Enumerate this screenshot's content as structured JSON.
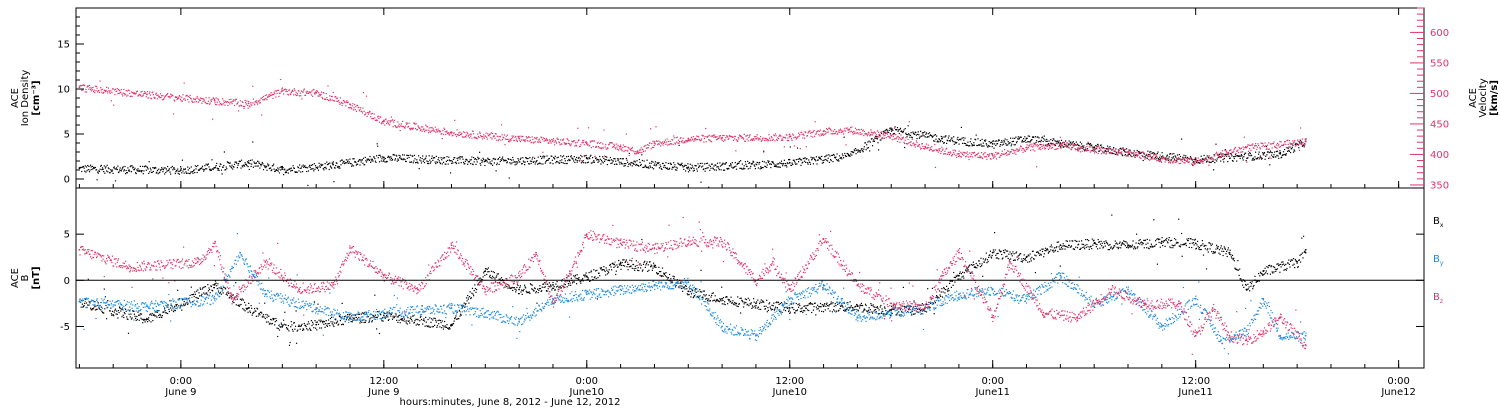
{
  "chart_data": [
    {
      "type": "scatter",
      "panel": "top",
      "ylabel_lines": [
        "ACE",
        "Ion Density",
        "[cm⁻³]"
      ],
      "ylabel_right_lines": [
        "ACE",
        "Velocity",
        "[km/s]"
      ],
      "y_left_ticks": [
        "0",
        "5",
        "10",
        "15"
      ],
      "y_right_ticks": [
        "350",
        "400",
        "450",
        "500",
        "550",
        "600"
      ],
      "ylim_left": [
        -1,
        19
      ],
      "ylim_right": [
        345,
        640
      ],
      "series": [
        {
          "color": "#000000",
          "axis": "left",
          "x_hours": [
            -6,
            0,
            4,
            6,
            9,
            12,
            18,
            24,
            30,
            36,
            39.5,
            42,
            45,
            48,
            50,
            52,
            54,
            56,
            60,
            65,
            66.5
          ],
          "values": [
            1.2,
            1.0,
            1.8,
            1.1,
            1.6,
            2.4,
            2.0,
            2.3,
            1.3,
            1.8,
            2.6,
            5.5,
            4.5,
            3.9,
            4.5,
            4.0,
            3.5,
            3.0,
            2.2,
            2.8,
            4.2
          ]
        },
        {
          "color": "#e0356a",
          "axis": "left",
          "x_hours": [
            -6,
            -2,
            2,
            4,
            6,
            8,
            10,
            12,
            16,
            20,
            24,
            26,
            27,
            28,
            30,
            32,
            36,
            38,
            39.5,
            42,
            44,
            46,
            48,
            50,
            52,
            54,
            56,
            58,
            60,
            61.5,
            63,
            66.5
          ],
          "values": [
            10.2,
            9.4,
            8.7,
            8.4,
            9.8,
            9.6,
            8.3,
            6.4,
            5.2,
            4.5,
            4.0,
            3.6,
            3.1,
            4.0,
            4.5,
            4.6,
            4.7,
            5.3,
            5.5,
            4.8,
            3.6,
            2.8,
            2.6,
            3.5,
            3.8,
            3.3,
            3.0,
            2.3,
            2.0,
            2.8,
            3.5,
            4.2
          ]
        }
      ]
    },
    {
      "type": "scatter",
      "panel": "bottom",
      "ylabel_lines": [
        "ACE",
        "B",
        "[nT]"
      ],
      "y_ticks": [
        "-5",
        "0",
        "5"
      ],
      "ylim": [
        -9.5,
        10
      ],
      "zero_line": true,
      "legend": [
        "Bx",
        "By",
        "Bz"
      ],
      "x_tick_labels": [
        {
          "time": "0:00",
          "date": "June 9"
        },
        {
          "time": "12:00",
          "date": "June 9"
        },
        {
          "time": "0:00",
          "date": "June10"
        },
        {
          "time": "12:00",
          "date": "June10"
        },
        {
          "time": "0:00",
          "date": "June11"
        },
        {
          "time": "12:00",
          "date": "June11"
        },
        {
          "time": "0:00",
          "date": "June12"
        }
      ],
      "xlim_hours": [
        -6.2,
        73.5
      ],
      "xlabel": "hours:minutes, June  8, 2012 - June 12, 2012",
      "series": [
        {
          "name": "Bx",
          "color": "#000000",
          "x_hours": [
            -6,
            -2,
            2,
            4,
            6,
            8,
            10,
            12,
            16,
            18,
            20,
            22,
            24,
            26,
            28,
            30,
            32,
            34,
            36,
            38,
            40,
            42,
            44,
            46,
            48,
            50,
            52,
            54,
            56,
            58,
            60,
            62,
            63,
            64,
            66,
            66.5
          ],
          "values": [
            -2.3,
            -4.2,
            -0.5,
            -3.0,
            -5.0,
            -4.8,
            -4.1,
            -3.8,
            -4.8,
            1.0,
            -1.0,
            -0.5,
            0.4,
            1.8,
            1.5,
            -1.2,
            -2.0,
            -2.5,
            -3.0,
            -2.8,
            -2.8,
            -3.2,
            -3.0,
            0.5,
            3.0,
            2.5,
            3.8,
            4.0,
            3.8,
            4.2,
            4.0,
            3.0,
            -1.0,
            1.0,
            2.0,
            3.0
          ]
        },
        {
          "name": "By",
          "color": "#1d8ae0",
          "x_hours": [
            -6,
            -2,
            2,
            3.5,
            5,
            8,
            10,
            12,
            16,
            18,
            20,
            22,
            24,
            26,
            28,
            30,
            32,
            34,
            36,
            38,
            40,
            42,
            44,
            46,
            48,
            50,
            52,
            54,
            56,
            58,
            60,
            61.5,
            63,
            64,
            65,
            66.5
          ],
          "values": [
            -2.3,
            -2.8,
            -2.0,
            3.0,
            -1.5,
            -3.0,
            -4.0,
            -3.5,
            -3.0,
            -3.5,
            -4.5,
            -2.0,
            -1.5,
            -1.0,
            -0.5,
            -0.2,
            -5.0,
            -6.0,
            -2.0,
            -0.5,
            -4.0,
            -3.5,
            -3.0,
            -1.5,
            -1.0,
            -2.0,
            0.5,
            -2.5,
            -1.0,
            -5.0,
            -2.0,
            -6.5,
            -5.5,
            -2.0,
            -6.0,
            -6.0
          ]
        },
        {
          "name": "Bz",
          "color": "#e0356a",
          "x_hours": [
            -6,
            -3,
            1,
            2,
            3,
            5,
            7,
            9,
            10,
            12,
            14,
            16,
            18,
            20,
            21,
            22,
            23,
            24,
            26,
            28,
            30,
            32,
            34,
            35,
            36,
            38,
            40,
            42,
            44,
            45,
            46,
            48,
            49,
            51,
            53,
            55,
            57,
            59,
            60,
            61,
            62,
            63,
            64,
            65,
            66.5
          ],
          "values": [
            3.3,
            1.5,
            2.0,
            4.0,
            -2.0,
            2.0,
            -1.0,
            -0.5,
            3.5,
            0.5,
            -1.0,
            3.8,
            -1.0,
            0.5,
            3.0,
            -2.5,
            1.0,
            5.0,
            4.0,
            3.5,
            4.3,
            4.2,
            0.0,
            2.0,
            -1.0,
            4.5,
            -0.5,
            -2.5,
            -3.0,
            0.5,
            3.0,
            -4.0,
            2.0,
            -3.5,
            -4.0,
            -1.0,
            -2.5,
            -2.5,
            -6.0,
            -3.0,
            -6.0,
            -6.5,
            -5.5,
            -4.0,
            -7.0
          ]
        }
      ]
    }
  ]
}
